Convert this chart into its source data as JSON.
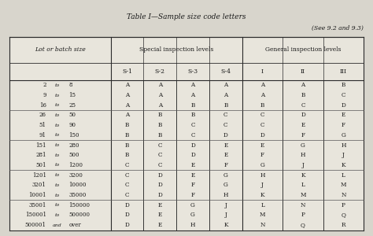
{
  "title": "Table I—Sample size code letters",
  "subtitle": "(See 9.2 and 9.3)",
  "rows": [
    [
      "2",
      "to",
      "8",
      "A",
      "A",
      "A",
      "A",
      "A",
      "A",
      "B"
    ],
    [
      "9",
      "to",
      "15",
      "A",
      "A",
      "A",
      "A",
      "A",
      "B",
      "C"
    ],
    [
      "16",
      "to",
      "25",
      "A",
      "A",
      "B",
      "B",
      "B",
      "C",
      "D"
    ],
    [
      "26",
      "to",
      "50",
      "A",
      "B",
      "B",
      "C",
      "C",
      "D",
      "E"
    ],
    [
      "51",
      "to",
      "90",
      "B",
      "B",
      "C",
      "C",
      "C",
      "E",
      "F"
    ],
    [
      "91",
      "to",
      "150",
      "B",
      "B",
      "C",
      "D",
      "D",
      "F",
      "G"
    ],
    [
      "151",
      "to",
      "280",
      "B",
      "C",
      "D",
      "E",
      "E",
      "G",
      "H"
    ],
    [
      "281",
      "to",
      "500",
      "B",
      "C",
      "D",
      "E",
      "F",
      "H",
      "J"
    ],
    [
      "501",
      "to",
      "1200",
      "C",
      "C",
      "E",
      "F",
      "G",
      "J",
      "K"
    ],
    [
      "1201",
      "to",
      "3200",
      "C",
      "D",
      "E",
      "G",
      "H",
      "K",
      "L"
    ],
    [
      "3201",
      "to",
      "10000",
      "C",
      "D",
      "F",
      "G",
      "J",
      "L",
      "M"
    ],
    [
      "10001",
      "to",
      "35000",
      "C",
      "D",
      "F",
      "H",
      "K",
      "M",
      "N"
    ],
    [
      "35001",
      "to",
      "150000",
      "D",
      "E",
      "G",
      "J",
      "L",
      "N",
      "P"
    ],
    [
      "150001",
      "to",
      "500000",
      "D",
      "E",
      "G",
      "J",
      "M",
      "P",
      "Q"
    ],
    [
      "500001",
      "and",
      "over",
      "D",
      "E",
      "H",
      "K",
      "N",
      "Q",
      "R"
    ]
  ],
  "group_separators": [
    3,
    6,
    9,
    12
  ],
  "bg_color": "#d8d5cc",
  "table_bg": "#e8e5dc",
  "border_color": "#2a2a2a",
  "text_color": "#1a1a1a",
  "title_fontsize": 6.5,
  "subtitle_fontsize": 5.5,
  "header_fontsize": 5.5,
  "data_fontsize": 5.2,
  "lot_fontsize": 5.0
}
